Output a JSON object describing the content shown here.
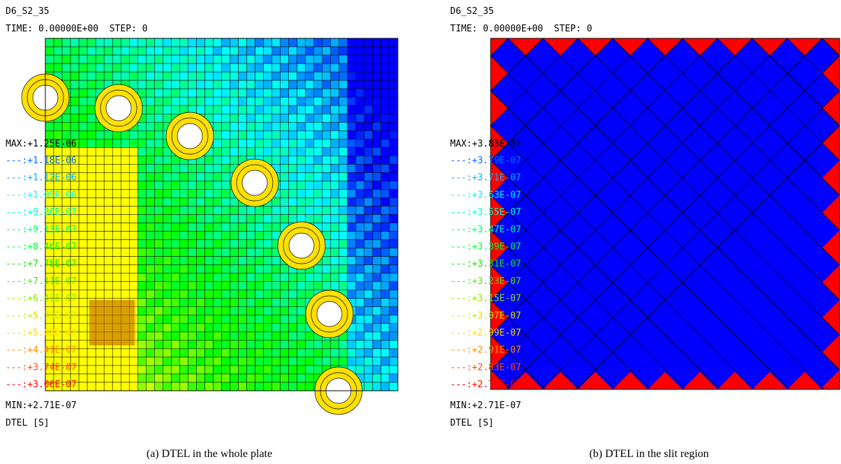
{
  "panels": [
    {
      "title": "D6_S2_35",
      "time": "TIME: 0.00000E+00  STEP: 0",
      "legend_max": "MAX:+1.25E-06",
      "legend": [
        "---:+1.18E-06",
        "---:+1.12E-06",
        "---:+1.05E-06",
        "---:+9.80E-07",
        "---:+9.13E-07",
        "---:+8.46E-07",
        "---:+7.78E-07",
        "---:+7.11E-07",
        "---:+6.43E-07",
        "---:+5.76E-07",
        "---:+5.08E-07",
        "---:+4.41E-07",
        "---:+3.74E-07",
        "---:+3.06E-07"
      ],
      "min": "MIN:+2.71E-07",
      "variable": "DTEL [S]",
      "caption": "(a) DTEL in the whole plate"
    },
    {
      "title": "D6_S2_35",
      "time": "TIME: 0.00000E+00  STEP: 0",
      "legend_max": "MAX:+3.83E-07",
      "legend": [
        "---:+3.79E-07",
        "---:+3.71E-07",
        "---:+3.63E-07",
        "---:+3.55E-07",
        "---:+3.47E-07",
        "---:+3.39E-07",
        "---:+3.31E-07",
        "---:+3.23E-07",
        "---:+3.15E-07",
        "---:+3.07E-07",
        "---:+2.99E-07",
        "---:+2.91E-07",
        "---:+2.83E-07",
        "---:+2.75E-07"
      ],
      "min": "MIN:+2.71E-07",
      "variable": "DTEL [S]",
      "caption": "(b) DTEL in the slit region"
    }
  ]
}
